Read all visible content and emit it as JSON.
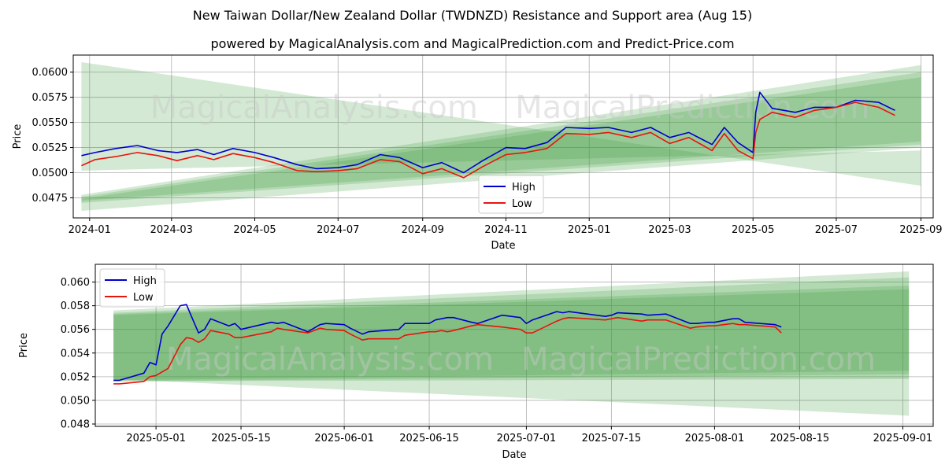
{
  "title": "New Taiwan Dollar/New Zealand Dollar (TWDNZD) Resistance and Support area (Aug 15)",
  "subtitle": "powered by MagicalAnalysis.com and MagicalPrediction.com and Predict-Price.com",
  "watermarks": [
    "MagicalAnalysis.com",
    "MagicalPrediction.com"
  ],
  "colors": {
    "high": "#0000cc",
    "low": "#e8140c",
    "band": "#3a9a3a",
    "grid": "#b0b0b0"
  },
  "chart_data": [
    {
      "type": "line",
      "xlabel": "Date",
      "ylabel": "Price",
      "xlim": [
        "2023-12-20",
        "2025-09-10"
      ],
      "ylim": [
        0.0455,
        0.0617
      ],
      "grid": true,
      "legend": {
        "placement": "lower-center",
        "entries": [
          "High",
          "Low"
        ]
      },
      "x_ticks": [
        "2024-01-01",
        "2024-03-01",
        "2024-05-01",
        "2024-07-01",
        "2024-09-01",
        "2024-11-01",
        "2025-01-01",
        "2025-03-01",
        "2025-05-01",
        "2025-07-01",
        "2025-09-01"
      ],
      "x_tick_labels": [
        "2024-01",
        "2024-03",
        "2024-05",
        "2024-07",
        "2024-09",
        "2024-11",
        "2025-01",
        "2025-03",
        "2025-05",
        "2025-07",
        "2025-09"
      ],
      "y_ticks": [
        0.0475,
        0.05,
        0.0525,
        0.055,
        0.0575,
        0.06
      ],
      "y_tick_labels": [
        "0.0475",
        "0.0500",
        "0.0525",
        "0.0550",
        "0.0575",
        "0.0600"
      ],
      "bands": [
        {
          "x": [
            "2023-12-26",
            "2025-09-01"
          ],
          "top": [
            0.061,
            0.0487
          ],
          "bottom": [
            0.0502,
            0.0522
          ]
        },
        {
          "x": [
            "2023-12-26",
            "2025-09-01"
          ],
          "top": [
            0.0478,
            0.0607
          ],
          "bottom": [
            0.0462,
            0.0525
          ]
        },
        {
          "x": [
            "2023-12-26",
            "2025-09-01"
          ],
          "top": [
            0.0476,
            0.06
          ],
          "bottom": [
            0.047,
            0.0528
          ]
        },
        {
          "x": [
            "2023-12-26",
            "2025-09-01"
          ],
          "top": [
            0.0474,
            0.0595
          ],
          "bottom": [
            0.0472,
            0.0531
          ]
        }
      ],
      "series": [
        {
          "name": "High",
          "x": [
            "2023-12-26",
            "2024-01-05",
            "2024-01-20",
            "2024-02-05",
            "2024-02-20",
            "2024-03-05",
            "2024-03-20",
            "2024-04-01",
            "2024-04-15",
            "2024-05-01",
            "2024-05-15",
            "2024-06-01",
            "2024-06-15",
            "2024-07-01",
            "2024-07-15",
            "2024-08-01",
            "2024-08-15",
            "2024-09-01",
            "2024-09-15",
            "2024-10-01",
            "2024-10-15",
            "2024-11-01",
            "2024-11-15",
            "2024-12-01",
            "2024-12-15",
            "2025-01-01",
            "2025-01-15",
            "2025-02-01",
            "2025-02-15",
            "2025-03-01",
            "2025-03-15",
            "2025-04-01",
            "2025-04-10",
            "2025-04-20",
            "2025-05-01",
            "2025-05-03",
            "2025-05-06",
            "2025-05-15",
            "2025-06-01",
            "2025-06-15",
            "2025-07-01",
            "2025-07-15",
            "2025-08-01",
            "2025-08-13"
          ],
          "values": [
            0.0517,
            0.052,
            0.0524,
            0.0527,
            0.0522,
            0.052,
            0.0523,
            0.0518,
            0.0524,
            0.052,
            0.0515,
            0.0508,
            0.0504,
            0.0505,
            0.0508,
            0.0518,
            0.0515,
            0.0505,
            0.051,
            0.05,
            0.0512,
            0.0525,
            0.0524,
            0.053,
            0.0545,
            0.0544,
            0.0545,
            0.054,
            0.0545,
            0.0535,
            0.054,
            0.0528,
            0.0545,
            0.053,
            0.052,
            0.056,
            0.058,
            0.0564,
            0.056,
            0.0565,
            0.0565,
            0.0572,
            0.057,
            0.0562
          ]
        },
        {
          "name": "Low",
          "x": [
            "2023-12-26",
            "2024-01-05",
            "2024-01-20",
            "2024-02-05",
            "2024-02-20",
            "2024-03-05",
            "2024-03-20",
            "2024-04-01",
            "2024-04-15",
            "2024-05-01",
            "2024-05-15",
            "2024-06-01",
            "2024-06-15",
            "2024-07-01",
            "2024-07-15",
            "2024-08-01",
            "2024-08-15",
            "2024-09-01",
            "2024-09-15",
            "2024-10-01",
            "2024-10-15",
            "2024-11-01",
            "2024-11-15",
            "2024-12-01",
            "2024-12-15",
            "2025-01-01",
            "2025-01-15",
            "2025-02-01",
            "2025-02-15",
            "2025-03-01",
            "2025-03-15",
            "2025-04-01",
            "2025-04-10",
            "2025-04-20",
            "2025-05-01",
            "2025-05-03",
            "2025-05-06",
            "2025-05-15",
            "2025-06-01",
            "2025-06-15",
            "2025-07-01",
            "2025-07-15",
            "2025-08-01",
            "2025-08-13"
          ],
          "values": [
            0.0507,
            0.0513,
            0.0516,
            0.052,
            0.0517,
            0.0512,
            0.0517,
            0.0513,
            0.0519,
            0.0515,
            0.051,
            0.0502,
            0.0501,
            0.0502,
            0.0504,
            0.0513,
            0.0511,
            0.0499,
            0.0504,
            0.0495,
            0.0506,
            0.0518,
            0.052,
            0.0524,
            0.0539,
            0.0538,
            0.054,
            0.0535,
            0.054,
            0.0529,
            0.0535,
            0.0522,
            0.0539,
            0.0522,
            0.0514,
            0.054,
            0.0553,
            0.056,
            0.0555,
            0.0562,
            0.0565,
            0.057,
            0.0565,
            0.0557
          ]
        }
      ]
    },
    {
      "type": "line",
      "xlabel": "Date",
      "ylabel": "Price",
      "xlim": [
        "2025-04-21",
        "2025-09-06"
      ],
      "ylim": [
        0.0478,
        0.0615
      ],
      "grid": true,
      "legend": {
        "placement": "upper-left",
        "entries": [
          "High",
          "Low"
        ]
      },
      "x_ticks": [
        "2025-05-01",
        "2025-05-15",
        "2025-06-01",
        "2025-06-15",
        "2025-07-01",
        "2025-07-15",
        "2025-08-01",
        "2025-08-15",
        "2025-09-01"
      ],
      "x_tick_labels": [
        "2025-05-01",
        "2025-05-15",
        "2025-06-01",
        "2025-06-15",
        "2025-07-01",
        "2025-07-15",
        "2025-08-01",
        "2025-08-15",
        "2025-09-01"
      ],
      "y_ticks": [
        0.048,
        0.05,
        0.052,
        0.054,
        0.056,
        0.058,
        0.06
      ],
      "y_tick_labels": [
        "0.048",
        "0.050",
        "0.052",
        "0.054",
        "0.056",
        "0.058",
        "0.060"
      ],
      "bands": [
        {
          "x": [
            "2025-04-24",
            "2025-09-02"
          ],
          "top": [
            0.0576,
            0.0609
          ],
          "bottom": [
            0.0518,
            0.0487
          ]
        },
        {
          "x": [
            "2025-04-24",
            "2025-09-02"
          ],
          "top": [
            0.0574,
            0.0604
          ],
          "bottom": [
            0.0516,
            0.0518
          ]
        },
        {
          "x": [
            "2025-04-24",
            "2025-09-02"
          ],
          "top": [
            0.0573,
            0.0597
          ],
          "bottom": [
            0.0516,
            0.0522
          ]
        },
        {
          "x": [
            "2025-04-24",
            "2025-09-02"
          ],
          "top": [
            0.0572,
            0.0594
          ],
          "bottom": [
            0.0517,
            0.0525
          ]
        }
      ],
      "series": [
        {
          "name": "High",
          "x": [
            "2025-04-24",
            "2025-04-25",
            "2025-04-29",
            "2025-04-30",
            "2025-05-01",
            "2025-05-02",
            "2025-05-03",
            "2025-05-05",
            "2025-05-06",
            "2025-05-07",
            "2025-05-08",
            "2025-05-09",
            "2025-05-10",
            "2025-05-13",
            "2025-05-14",
            "2025-05-15",
            "2025-05-20",
            "2025-05-21",
            "2025-05-22",
            "2025-05-26",
            "2025-05-28",
            "2025-05-29",
            "2025-06-01",
            "2025-06-02",
            "2025-06-04",
            "2025-06-05",
            "2025-06-10",
            "2025-06-11",
            "2025-06-15",
            "2025-06-16",
            "2025-06-17",
            "2025-06-18",
            "2025-06-19",
            "2025-06-22",
            "2025-06-23",
            "2025-06-27",
            "2025-06-30",
            "2025-07-01",
            "2025-07-02",
            "2025-07-06",
            "2025-07-07",
            "2025-07-08",
            "2025-07-14",
            "2025-07-15",
            "2025-07-16",
            "2025-07-20",
            "2025-07-21",
            "2025-07-24",
            "2025-07-28",
            "2025-07-29",
            "2025-07-31",
            "2025-08-01",
            "2025-08-04",
            "2025-08-05",
            "2025-08-06",
            "2025-08-11",
            "2025-08-12"
          ],
          "values": [
            0.0517,
            0.0517,
            0.0523,
            0.0532,
            0.053,
            0.0556,
            0.0563,
            0.058,
            0.0581,
            0.0569,
            0.0557,
            0.056,
            0.0569,
            0.0563,
            0.0565,
            0.056,
            0.0566,
            0.0565,
            0.0566,
            0.0558,
            0.0564,
            0.0565,
            0.0564,
            0.0561,
            0.0556,
            0.0558,
            0.056,
            0.0565,
            0.0565,
            0.0568,
            0.0569,
            0.057,
            0.057,
            0.0566,
            0.0565,
            0.0572,
            0.057,
            0.0565,
            0.0568,
            0.0575,
            0.0574,
            0.0575,
            0.0571,
            0.0572,
            0.0574,
            0.0573,
            0.0572,
            0.0573,
            0.0565,
            0.0565,
            0.0566,
            0.0566,
            0.0569,
            0.0569,
            0.0566,
            0.0564,
            0.0562
          ]
        },
        {
          "name": "Low",
          "x": [
            "2025-04-24",
            "2025-04-25",
            "2025-04-29",
            "2025-04-30",
            "2025-05-01",
            "2025-05-02",
            "2025-05-03",
            "2025-05-05",
            "2025-05-06",
            "2025-05-07",
            "2025-05-08",
            "2025-05-09",
            "2025-05-10",
            "2025-05-13",
            "2025-05-14",
            "2025-05-15",
            "2025-05-20",
            "2025-05-21",
            "2025-05-22",
            "2025-05-26",
            "2025-05-28",
            "2025-05-29",
            "2025-06-01",
            "2025-06-02",
            "2025-06-04",
            "2025-06-05",
            "2025-06-10",
            "2025-06-11",
            "2025-06-15",
            "2025-06-16",
            "2025-06-17",
            "2025-06-18",
            "2025-06-19",
            "2025-06-22",
            "2025-06-23",
            "2025-06-27",
            "2025-06-30",
            "2025-07-01",
            "2025-07-02",
            "2025-07-06",
            "2025-07-07",
            "2025-07-08",
            "2025-07-14",
            "2025-07-15",
            "2025-07-16",
            "2025-07-20",
            "2025-07-21",
            "2025-07-24",
            "2025-07-28",
            "2025-07-29",
            "2025-07-31",
            "2025-08-01",
            "2025-08-04",
            "2025-08-05",
            "2025-08-06",
            "2025-08-11",
            "2025-08-12"
          ],
          "values": [
            0.0514,
            0.0514,
            0.0516,
            0.052,
            0.0521,
            0.0524,
            0.0527,
            0.0547,
            0.0553,
            0.0552,
            0.0549,
            0.0552,
            0.0559,
            0.0556,
            0.0553,
            0.0553,
            0.0558,
            0.0561,
            0.056,
            0.0557,
            0.0561,
            0.056,
            0.0559,
            0.0556,
            0.0551,
            0.0552,
            0.0552,
            0.0555,
            0.0558,
            0.0558,
            0.0559,
            0.0558,
            0.0559,
            0.0563,
            0.0564,
            0.0562,
            0.056,
            0.0557,
            0.0557,
            0.0567,
            0.0569,
            0.057,
            0.0568,
            0.0569,
            0.057,
            0.0567,
            0.0568,
            0.0568,
            0.0561,
            0.0562,
            0.0563,
            0.0563,
            0.0565,
            0.0564,
            0.0564,
            0.0562,
            0.0557
          ]
        }
      ]
    }
  ]
}
